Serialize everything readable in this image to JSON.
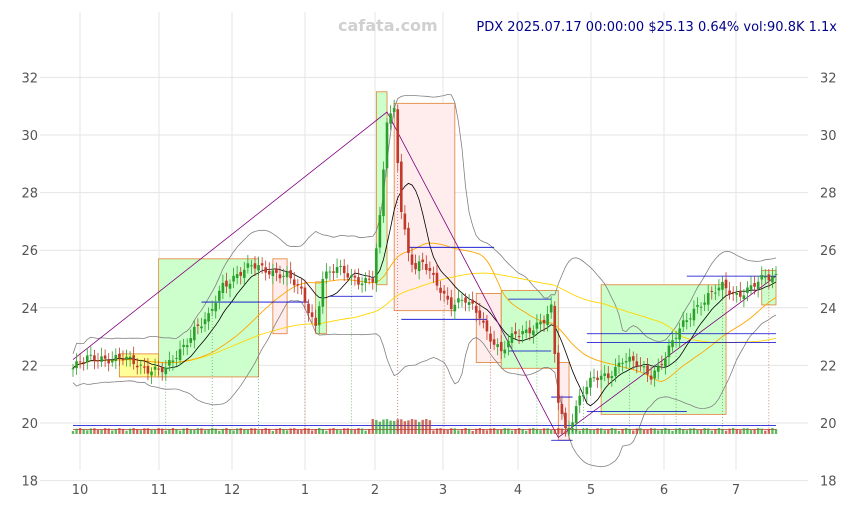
{
  "watermark": "cafata.com",
  "header": "PDX 2025.07.17 00:00:00 $25.13 0.64% vol:90.8K 1.1x",
  "colors": {
    "up": "#2ca02c",
    "down": "#c0392b",
    "grid": "#e4e4e4",
    "bb": "#808080",
    "ma_short": "#000000",
    "ma_mid": "#ffa500",
    "ma_long": "#ffd700",
    "trend": "#800080",
    "pivot": "#0000cd",
    "box_up_fill": "#ccffcc",
    "box_down_fill": "#ffecec",
    "box_flat_fill": "#ffff99",
    "box_stroke": "#e08030"
  },
  "chart_data": {
    "type": "candlestick",
    "title": "PDX 2025.07.17 00:00:00 $25.13 0.64% vol:90.8K 1.1x",
    "x_ticks": [
      "10",
      "11",
      "12",
      "1",
      "2",
      "3",
      "4",
      "5",
      "6",
      "7"
    ],
    "y_ticks": [
      18,
      20,
      22,
      24,
      26,
      28,
      30,
      32
    ],
    "ylim": [
      17.5,
      32.8
    ],
    "grid": true,
    "anchors": [
      [
        0,
        21.9
      ],
      [
        4,
        22.2
      ],
      [
        8,
        22.3
      ],
      [
        14,
        22.2
      ],
      [
        20,
        21.95
      ],
      [
        26,
        21.8
      ],
      [
        30,
        22.5
      ],
      [
        34,
        23.3
      ],
      [
        38,
        23.6
      ],
      [
        42,
        24.8
      ],
      [
        46,
        25.2
      ],
      [
        50,
        25.4
      ],
      [
        56,
        25.3
      ],
      [
        60,
        25.1
      ],
      [
        64,
        24.5
      ],
      [
        68,
        23.4
      ],
      [
        70,
        25.1
      ],
      [
        74,
        25.3
      ],
      [
        80,
        25.0
      ],
      [
        84,
        24.95
      ],
      [
        86,
        27.0
      ],
      [
        88,
        30.5
      ],
      [
        90,
        30.9
      ],
      [
        92,
        27.5
      ],
      [
        94,
        25.9
      ],
      [
        96,
        25.3
      ],
      [
        98,
        25.5
      ],
      [
        102,
        24.9
      ],
      [
        106,
        24.1
      ],
      [
        110,
        24.2
      ],
      [
        114,
        23.8
      ],
      [
        116,
        23.2
      ],
      [
        120,
        22.4
      ],
      [
        124,
        23.1
      ],
      [
        128,
        23.3
      ],
      [
        132,
        23.5
      ],
      [
        134,
        23.9
      ],
      [
        136,
        20.8
      ],
      [
        138,
        19.8
      ],
      [
        140,
        20.2
      ],
      [
        142,
        20.9
      ],
      [
        146,
        21.5
      ],
      [
        150,
        21.7
      ],
      [
        154,
        22.2
      ],
      [
        158,
        22.0
      ],
      [
        162,
        21.7
      ],
      [
        166,
        22.3
      ],
      [
        170,
        23.2
      ],
      [
        174,
        24.0
      ],
      [
        178,
        24.4
      ],
      [
        182,
        24.7
      ],
      [
        186,
        24.5
      ],
      [
        190,
        24.7
      ],
      [
        194,
        25.0
      ],
      [
        197,
        25.13
      ]
    ],
    "bars": 198,
    "overlays": {
      "moving_averages": [
        "short",
        "mid",
        "long"
      ],
      "bollinger_bands": true,
      "trendline": [
        [
          0,
          22.2
        ],
        [
          88,
          30.8
        ],
        [
          136,
          19.5
        ],
        [
          198,
          25.1
        ]
      ],
      "pivot_lines": [
        {
          "from": 36,
          "to": 66,
          "y": 24.2
        },
        {
          "from": 72,
          "to": 84,
          "y": 24.4
        },
        {
          "from": 94,
          "to": 118,
          "y": 26.1
        },
        {
          "from": 92,
          "to": 116,
          "y": 23.6
        },
        {
          "from": 122,
          "to": 134,
          "y": 24.3
        },
        {
          "from": 122,
          "to": 134,
          "y": 22.5
        },
        {
          "from": 134,
          "to": 140,
          "y": 19.4
        },
        {
          "from": 134,
          "to": 140,
          "y": 20.9
        },
        {
          "from": 144,
          "to": 172,
          "y": 20.4
        },
        {
          "from": 144,
          "to": 198,
          "y": 23.1
        },
        {
          "from": 144,
          "to": 198,
          "y": 22.8
        },
        {
          "from": 172,
          "to": 198,
          "y": 25.1
        }
      ],
      "boxes": [
        {
          "from": 13,
          "to": 24,
          "y0": 21.6,
          "y1": 22.4,
          "kind": "flat"
        },
        {
          "from": 24,
          "to": 52,
          "y0": 21.6,
          "y1": 25.7,
          "kind": "up"
        },
        {
          "from": 56,
          "to": 60,
          "y0": 23.1,
          "y1": 25.7,
          "kind": "down"
        },
        {
          "from": 68,
          "to": 71,
          "y0": 23.1,
          "y1": 24.9,
          "kind": "up"
        },
        {
          "from": 85,
          "to": 88,
          "y0": 24.8,
          "y1": 31.5,
          "kind": "up"
        },
        {
          "from": 90,
          "to": 107,
          "y0": 23.9,
          "y1": 31.1,
          "kind": "down"
        },
        {
          "from": 113,
          "to": 120,
          "y0": 22.1,
          "y1": 24.5,
          "kind": "down"
        },
        {
          "from": 120,
          "to": 136,
          "y0": 21.9,
          "y1": 24.6,
          "kind": "up"
        },
        {
          "from": 136,
          "to": 139,
          "y0": 19.4,
          "y1": 22.1,
          "kind": "down"
        },
        {
          "from": 148,
          "to": 183,
          "y0": 20.3,
          "y1": 24.8,
          "kind": "up"
        },
        {
          "from": 193,
          "to": 200,
          "y0": 24.1,
          "y1": 25.3,
          "kind": "up"
        }
      ]
    }
  }
}
